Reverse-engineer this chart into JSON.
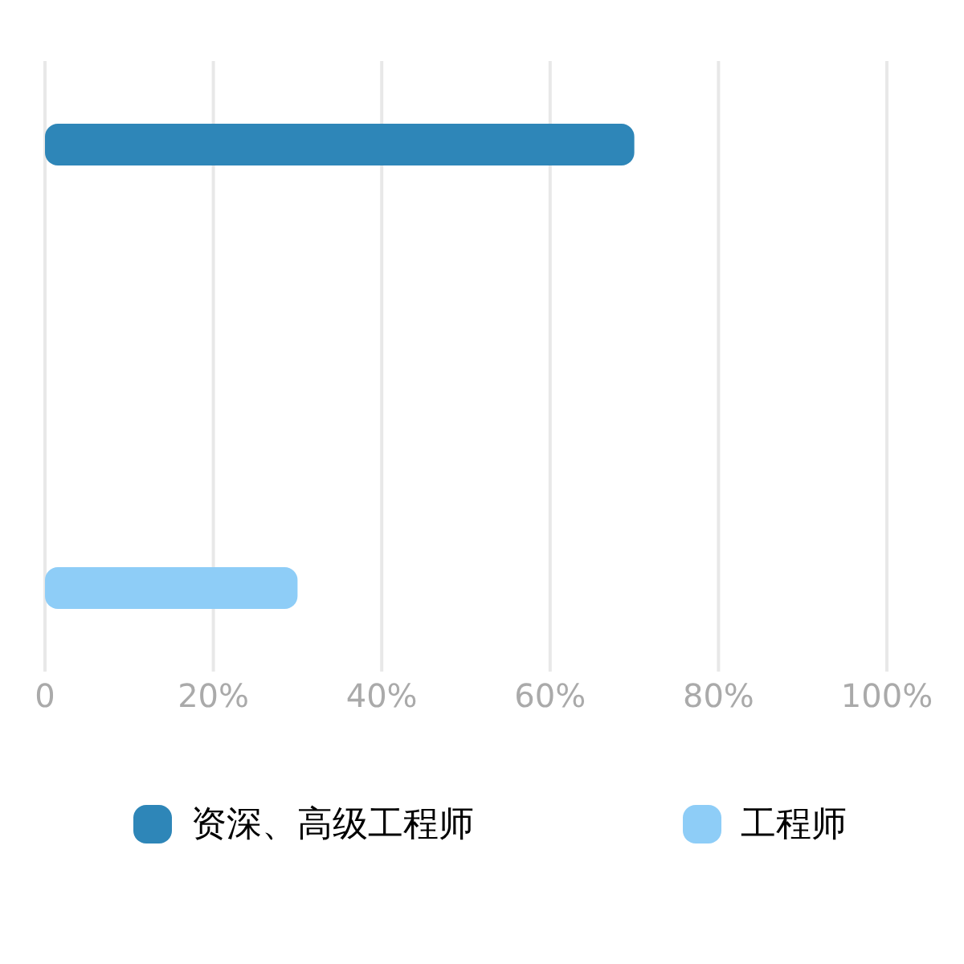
{
  "chart_data": {
    "type": "bar",
    "orientation": "horizontal",
    "categories": [
      null,
      null
    ],
    "series": [
      {
        "name": "资深、高级工程师",
        "color": "#2e86b8",
        "values": [
          70,
          null
        ]
      },
      {
        "name": "工程师",
        "color": "#8ecdf7",
        "values": [
          null,
          30
        ]
      }
    ],
    "xlim": [
      0,
      100
    ],
    "xticks": [
      {
        "value": 0,
        "label": "0"
      },
      {
        "value": 20,
        "label": "20%"
      },
      {
        "value": 40,
        "label": "40%"
      },
      {
        "value": 60,
        "label": "60%"
      },
      {
        "value": 80,
        "label": "80%"
      },
      {
        "value": 100,
        "label": "100%"
      }
    ],
    "grid": "x",
    "legend": "bottom"
  }
}
